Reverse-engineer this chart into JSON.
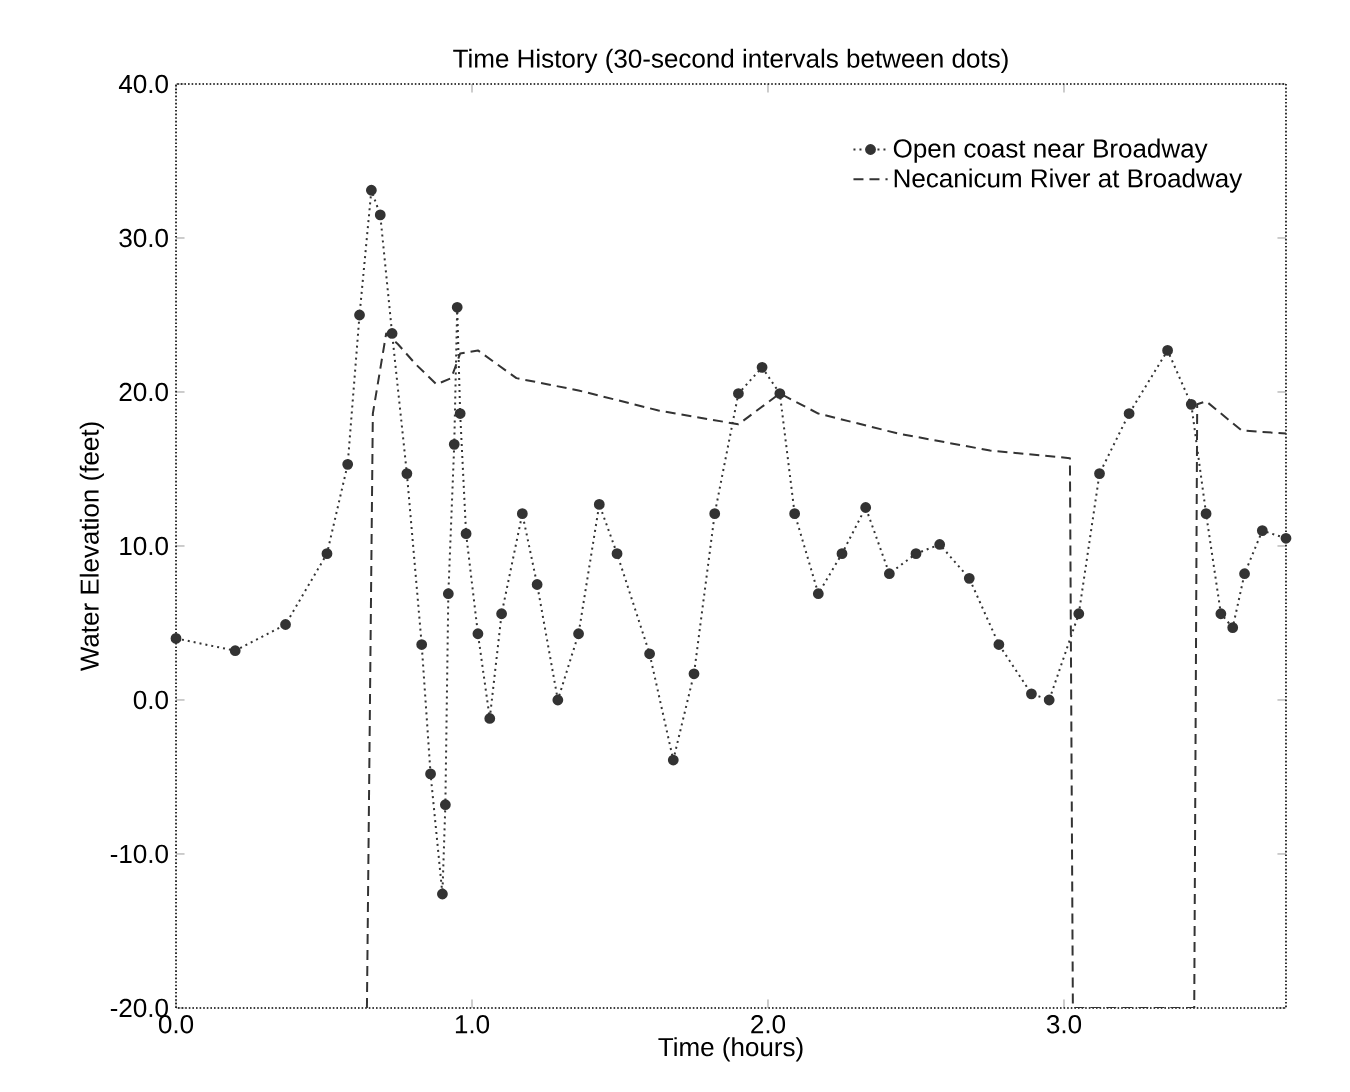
{
  "chart_data": {
    "type": "line",
    "title": "Time History (30-second intervals between dots)",
    "xlabel": "Time (hours)",
    "ylabel": "Water Elevation (feet)",
    "xlim": [
      0,
      3.75
    ],
    "ylim": [
      -20,
      40
    ],
    "xticks": [
      {
        "value": 0,
        "label": "0.0"
      },
      {
        "value": 1,
        "label": "1.0"
      },
      {
        "value": 2,
        "label": "2.0"
      },
      {
        "value": 3,
        "label": "3.0"
      }
    ],
    "yticks": [
      {
        "value": -20,
        "label": "-20.0"
      },
      {
        "value": -10,
        "label": "-10.0"
      },
      {
        "value": 0,
        "label": "0.0"
      },
      {
        "value": 10,
        "label": "10.0"
      },
      {
        "value": 20,
        "label": "20.0"
      },
      {
        "value": 30,
        "label": "30.0"
      },
      {
        "value": 40,
        "label": "40.0"
      }
    ],
    "legend": "top right",
    "grid": false,
    "series": [
      {
        "name": "Open coast near Broadway",
        "color": "#333333",
        "marker": "circle",
        "line_style": "dotted",
        "x": [
          0,
          0.2,
          0.37,
          0.51,
          0.58,
          0.62,
          0.66,
          0.69,
          0.73,
          0.78,
          0.83,
          0.86,
          0.9,
          0.91,
          0.92,
          0.94,
          0.95,
          0.96,
          0.98,
          1.02,
          1.06,
          1.1,
          1.17,
          1.22,
          1.29,
          1.36,
          1.43,
          1.49,
          1.6,
          1.68,
          1.75,
          1.82,
          1.9,
          1.98,
          2.04,
          2.09,
          2.17,
          2.25,
          2.33,
          2.41,
          2.5,
          2.58,
          2.68,
          2.78,
          2.89,
          2.95,
          3.05,
          3.12,
          3.22,
          3.35,
          3.43,
          3.48,
          3.53,
          3.57,
          3.61,
          3.67,
          3.75
        ],
        "values": [
          4.0,
          3.2,
          4.9,
          9.5,
          15.3,
          25,
          33.1,
          31.5,
          23.8,
          14.7,
          3.6,
          -4.8,
          -12.6,
          -6.8,
          6.9,
          16.6,
          25.5,
          18.6,
          10.8,
          4.3,
          -1.2,
          5.6,
          12.1,
          7.5,
          0,
          4.3,
          12.7,
          9.5,
          3.0,
          -3.9,
          1.7,
          12.1,
          19.9,
          21.6,
          19.9,
          12.1,
          6.9,
          9.5,
          12.5,
          8.2,
          9.5,
          10.1,
          7.9,
          3.6,
          0.4,
          0,
          5.6,
          14.7,
          18.6,
          22.7,
          19.2,
          12.1,
          5.6,
          4.7,
          8.2,
          11.0,
          10.5
        ]
      },
      {
        "name": "Necanicum River at Broadway",
        "color": "#333333",
        "marker": "none",
        "line_style": "dashed",
        "x": [
          0.645,
          0.665,
          0.71,
          0.75,
          0.81,
          0.88,
          0.93,
          0.96,
          1.02,
          1.15,
          1.36,
          1.63,
          1.9,
          2.04,
          2.17,
          2.44,
          2.75,
          3.02,
          3.03,
          3.44,
          3.45,
          3.48,
          3.6,
          3.75
        ],
        "values": [
          -20,
          18.6,
          23.8,
          23.1,
          21.8,
          20.5,
          20.9,
          22.5,
          22.7,
          20.9,
          20.1,
          18.8,
          17.9,
          19.9,
          18.6,
          17.3,
          16.2,
          15.7,
          -20,
          -20,
          19.2,
          19.4,
          17.5,
          17.3
        ]
      }
    ]
  }
}
